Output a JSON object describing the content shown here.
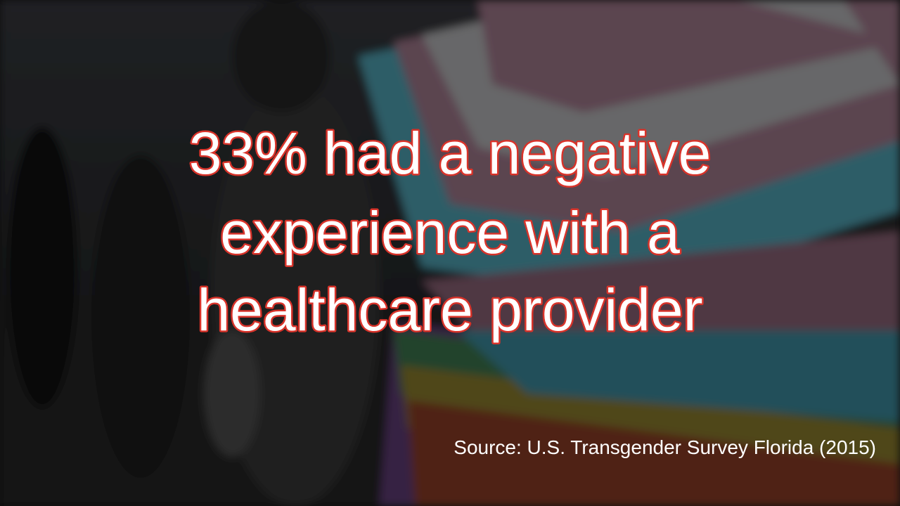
{
  "headline": {
    "lines": [
      "33% had a negative",
      "experience with a",
      "healthcare provider"
    ]
  },
  "source": "Source: U.S. Transgender Survey Florida (2015)"
}
